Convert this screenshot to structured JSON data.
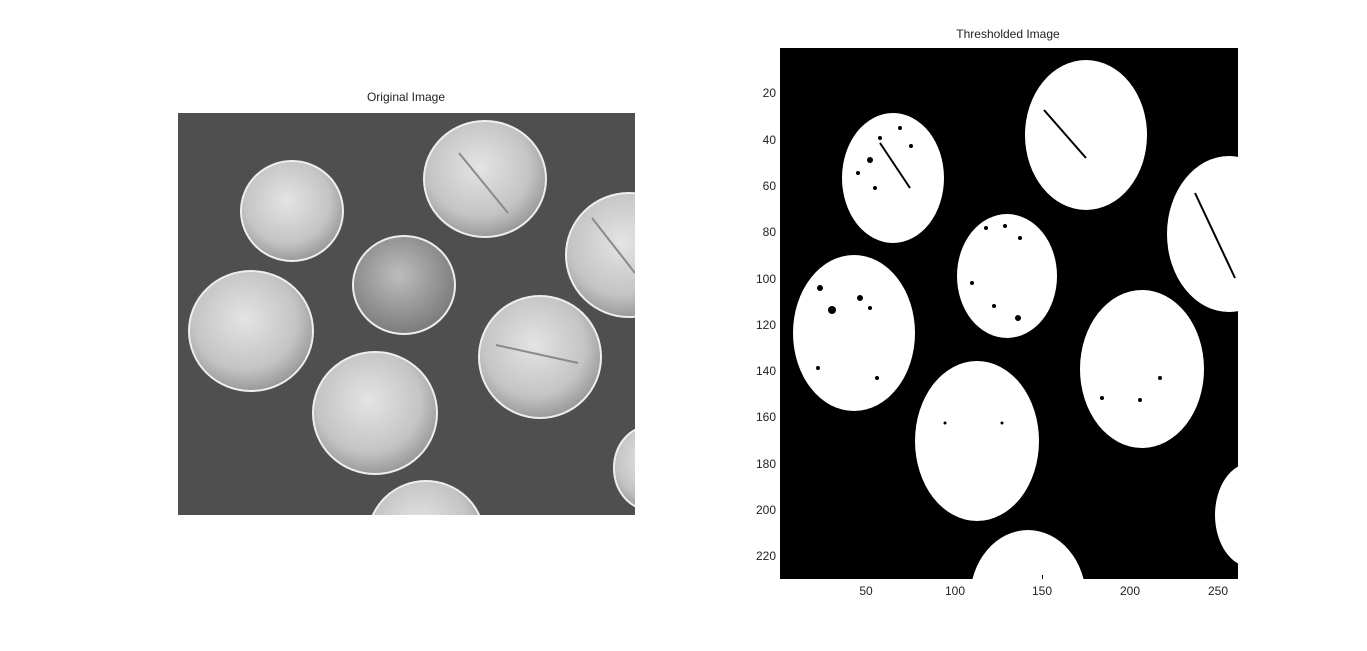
{
  "figure": {
    "left_panel": {
      "title": "Original Image"
    },
    "right_panel": {
      "title": "Thresholded Image",
      "y_ticks": [
        "20",
        "40",
        "60",
        "80",
        "100",
        "120",
        "140",
        "160",
        "180",
        "200",
        "220"
      ],
      "x_ticks": [
        "50",
        "100",
        "150",
        "200",
        "250"
      ]
    }
  },
  "colors": {
    "background": "#ffffff",
    "original_bg": "#4f4f4f",
    "original_coin": "#cfcfcf",
    "threshold_bg": "#000000",
    "threshold_fg": "#ffffff"
  }
}
